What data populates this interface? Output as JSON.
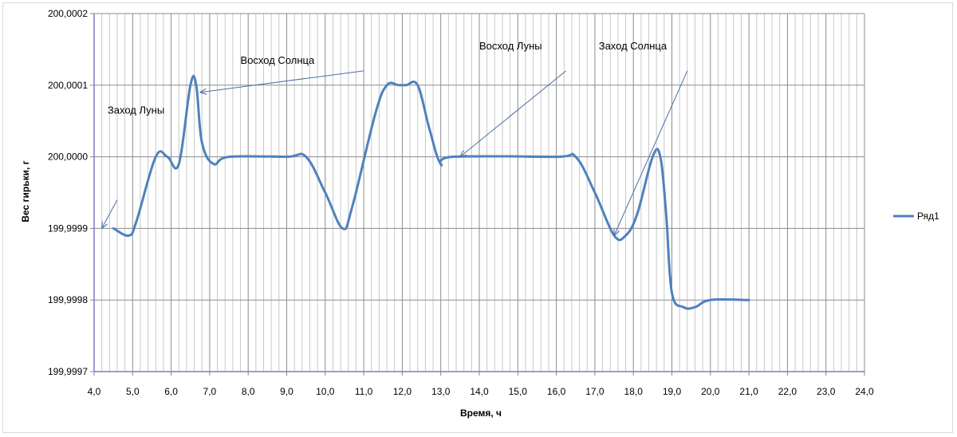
{
  "chart_data": {
    "type": "line",
    "title": "",
    "xlabel": "Время, ч",
    "ylabel": "Вес гирьки, г",
    "xlim": [
      4.0,
      24.0
    ],
    "ylim": [
      199.9997,
      200.0002
    ],
    "x_major_step": 1.0,
    "x_minor_step": 0.2,
    "y_step": 0.0001,
    "x_ticks": [
      "4,0",
      "5,0",
      "6,0",
      "7,0",
      "8,0",
      "9,0",
      "10,0",
      "11,0",
      "12,0",
      "13,0",
      "14,0",
      "15,0",
      "16,0",
      "17,0",
      "18,0",
      "19,0",
      "20,0",
      "21,0",
      "22,0",
      "23,0",
      "24,0"
    ],
    "y_ticks": [
      "199,9997",
      "199,9998",
      "199,9999",
      "200,0000",
      "200,0001",
      "200,0002"
    ],
    "grid": true,
    "legend": "right",
    "series": [
      {
        "name": "Ряд1",
        "color": "#4f81bd",
        "points": [
          [
            4.5,
            199.9999
          ],
          [
            4.9,
            199.99989
          ],
          [
            5.1,
            199.99991
          ],
          [
            5.6,
            200.0
          ],
          [
            5.9,
            200.0
          ],
          [
            6.2,
            199.99999
          ],
          [
            6.5,
            200.0001
          ],
          [
            6.65,
            200.0001
          ],
          [
            6.8,
            200.00002
          ],
          [
            7.1,
            199.99999
          ],
          [
            7.5,
            200.0
          ],
          [
            9.0,
            200.0
          ],
          [
            9.5,
            200.0
          ],
          [
            10.0,
            199.99995
          ],
          [
            10.45,
            199.9999
          ],
          [
            10.7,
            199.99993
          ],
          [
            11.3,
            200.00006
          ],
          [
            11.6,
            200.0001
          ],
          [
            11.9,
            200.0001
          ],
          [
            12.1,
            200.0001
          ],
          [
            12.4,
            200.0001
          ],
          [
            12.7,
            200.00004
          ],
          [
            13.0,
            199.99999
          ],
          [
            13.3,
            200.0
          ],
          [
            16.0,
            200.0
          ],
          [
            16.5,
            200.0
          ],
          [
            17.0,
            199.99995
          ],
          [
            17.5,
            199.99989
          ],
          [
            17.8,
            199.99989
          ],
          [
            18.1,
            199.99992
          ],
          [
            18.5,
            200.0
          ],
          [
            18.7,
            200.0
          ],
          [
            18.85,
            199.99992
          ],
          [
            19.0,
            199.99981
          ],
          [
            19.3,
            199.99979
          ],
          [
            19.6,
            199.99979
          ],
          [
            20.0,
            199.9998
          ],
          [
            21.0,
            199.9998
          ]
        ]
      }
    ],
    "annotations": [
      {
        "text": "Заход Луны",
        "label_x": 4.35,
        "label_y": 200.00006,
        "line_from": [
          4.6,
          199.99994
        ],
        "arrow_to": [
          4.2,
          199.9999
        ]
      },
      {
        "text": "Восход Солнца",
        "label_x": 7.8,
        "label_y": 200.00013,
        "line_from": [
          11.0,
          200.00012
        ],
        "arrow_to": [
          6.75,
          200.00009
        ]
      },
      {
        "text": "Восход Луны",
        "label_x": 14.0,
        "label_y": 200.00015,
        "line_from": [
          16.25,
          200.00012
        ],
        "arrow_to": [
          13.5,
          200.0
        ]
      },
      {
        "text": "Заход Солнца",
        "label_x": 17.1,
        "label_y": 200.00015,
        "line_from": [
          19.4,
          200.00012
        ],
        "arrow_to": [
          17.5,
          199.99989
        ]
      }
    ]
  }
}
